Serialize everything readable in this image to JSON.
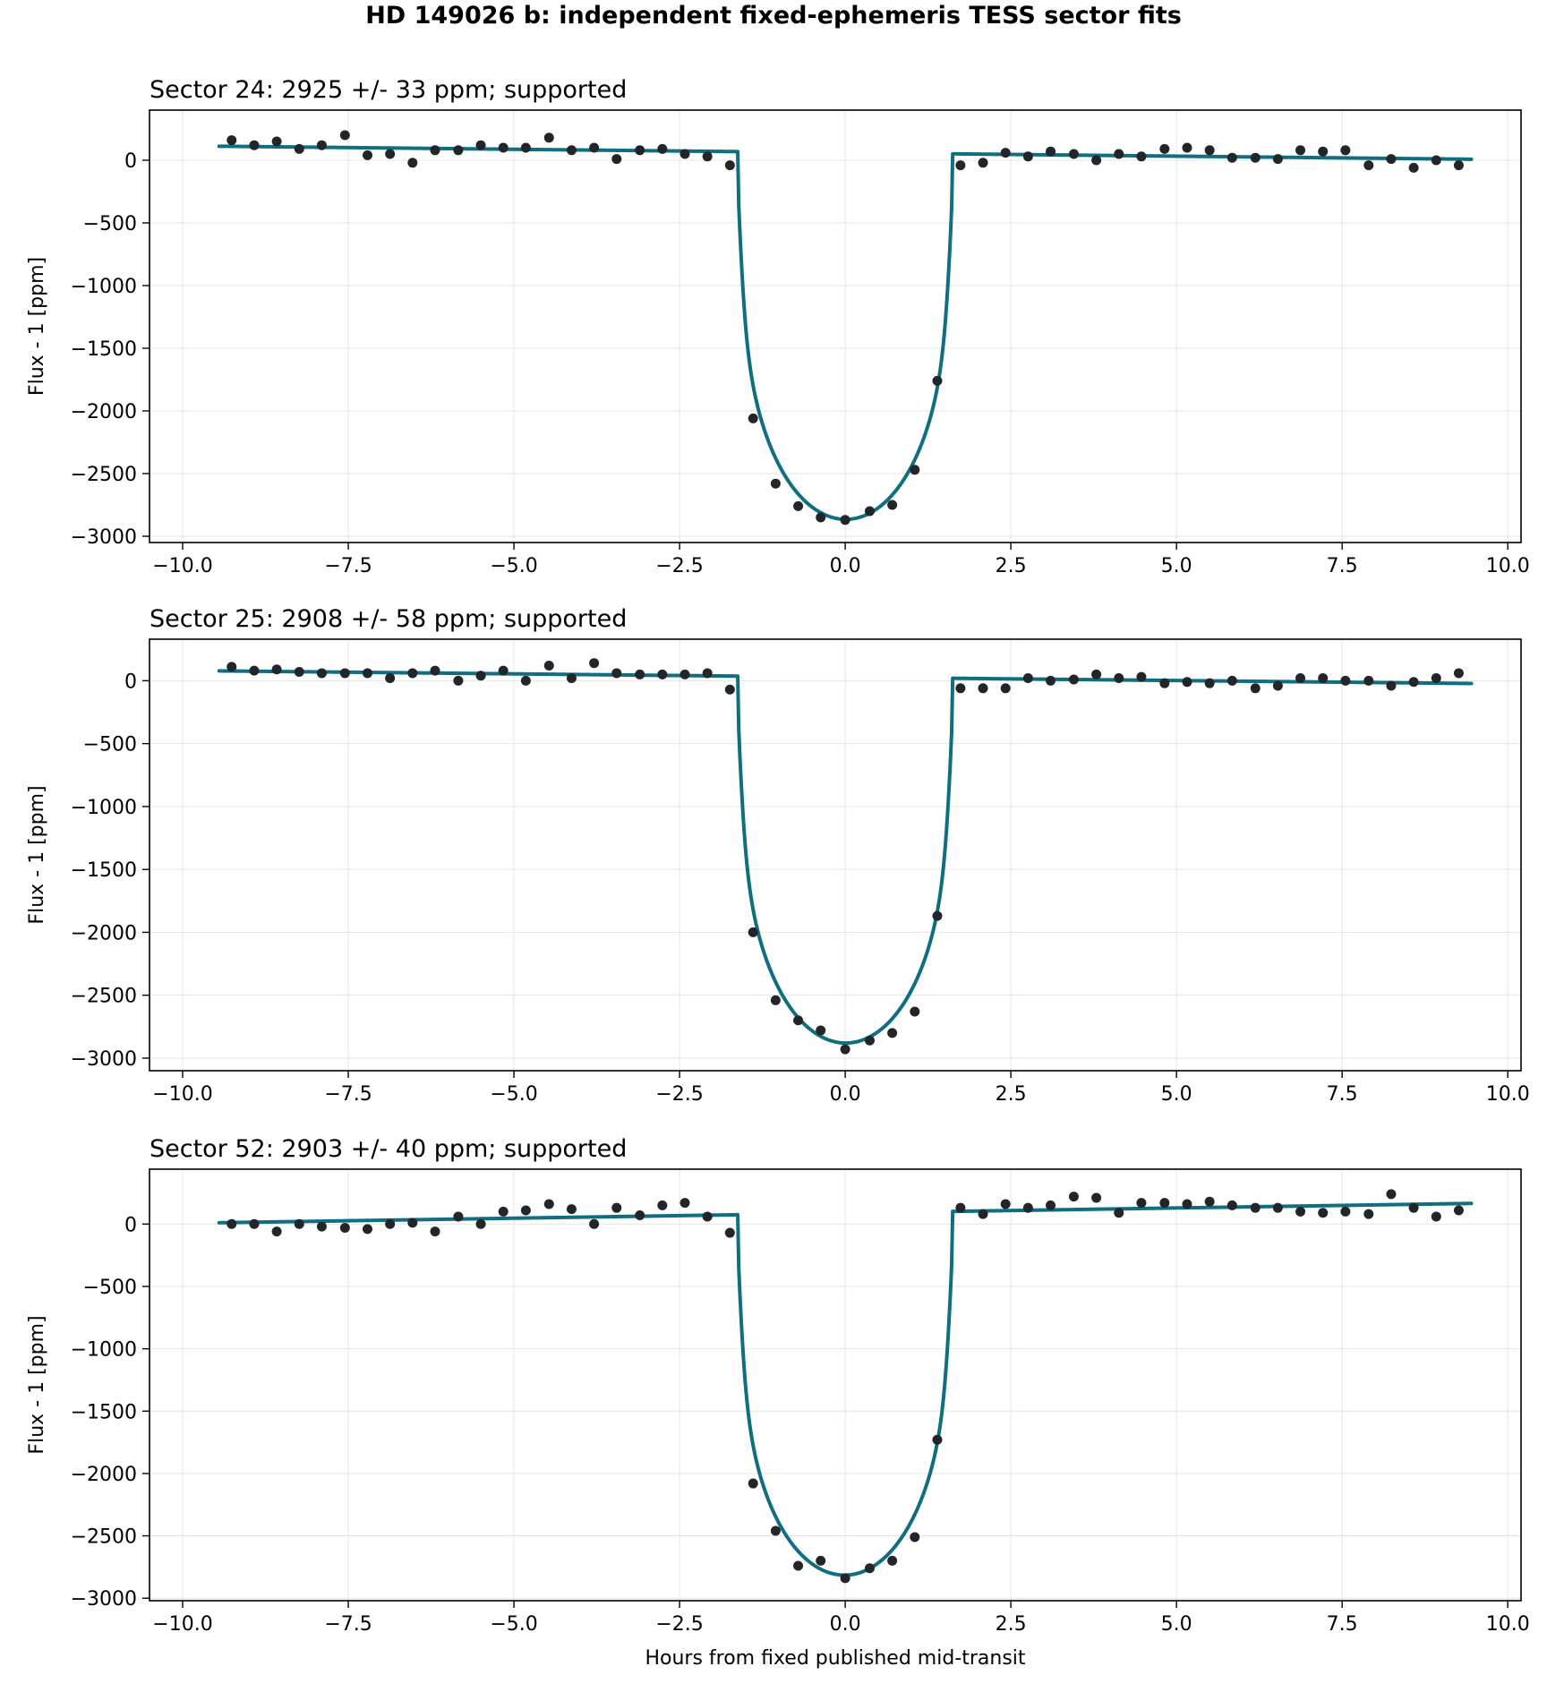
{
  "figure": {
    "suptitle": "HD 149026 b: independent fixed-ephemeris TESS sector fits",
    "xlabel": "Hours from fixed published mid-transit"
  },
  "colors": {
    "model_line": "#0f6e80",
    "data_points": "#22262b"
  },
  "chart_data": [
    {
      "type": "scatter",
      "title": "Sector 24: 2925 +/- 33 ppm; supported",
      "xlabel": "",
      "ylabel": "Flux - 1 [ppm]",
      "xlim": [
        -10.5,
        10.2
      ],
      "ylim": [
        -3050,
        400
      ],
      "xticks": [
        -10.0,
        -7.5,
        -5.0,
        -2.5,
        0.0,
        2.5,
        5.0,
        7.5,
        10.0
      ],
      "xtick_labels": [
        "−10.0",
        "−7.5",
        "−5.0",
        "−2.5",
        "0.0",
        "2.5",
        "5.0",
        "7.5",
        "10.0"
      ],
      "yticks": [
        0,
        -500,
        -1000,
        -1500,
        -2000,
        -2500,
        -3000
      ],
      "ytick_labels": [
        "0",
        "−500",
        "−1000",
        "−1500",
        "−2000",
        "−2500",
        "−3000"
      ],
      "grid": true,
      "legend": "none",
      "series": [
        {
          "kind": "points",
          "x": [
            -9.26,
            -8.92,
            -8.58,
            -8.24,
            -7.9,
            -7.55,
            -7.21,
            -6.87,
            -6.53,
            -6.19,
            -5.84,
            -5.5,
            -5.16,
            -4.82,
            -4.47,
            -4.13,
            -3.79,
            -3.45,
            -3.1,
            -2.76,
            -2.42,
            -2.08,
            -1.74,
            -1.39,
            -1.05,
            -0.71,
            -0.37,
            0.0,
            0.37,
            0.71,
            1.05,
            1.39,
            1.74,
            2.08,
            2.42,
            2.76,
            3.1,
            3.45,
            3.79,
            4.13,
            4.47,
            4.82,
            5.16,
            5.5,
            5.84,
            6.19,
            6.53,
            6.87,
            7.21,
            7.55,
            7.9,
            8.24,
            8.58,
            8.92,
            9.26
          ],
          "y": [
            160,
            120,
            150,
            90,
            120,
            200,
            40,
            50,
            -20,
            80,
            80,
            120,
            100,
            100,
            180,
            80,
            100,
            10,
            80,
            90,
            50,
            30,
            -40,
            -2060,
            -2580,
            -2760,
            -2850,
            -2870,
            -2800,
            -2750,
            -2470,
            -1760,
            -40,
            -20,
            60,
            30,
            70,
            50,
            0,
            50,
            30,
            90,
            100,
            80,
            20,
            20,
            10,
            80,
            70,
            80,
            -40,
            10,
            -60,
            0,
            -40
          ]
        },
        {
          "kind": "model",
          "name": "",
          "x_range": [
            -9.45,
            9.45
          ],
          "baseline_intercept": 60,
          "baseline_slope": -5.5,
          "depth": 2925,
          "half_duration": 1.62,
          "ingress_width": 0.05,
          "limb_power": 0.33
        }
      ]
    },
    {
      "type": "scatter",
      "title": "Sector 25: 2908 +/- 58 ppm; supported",
      "xlabel": "",
      "ylabel": "Flux - 1 [ppm]",
      "xlim": [
        -10.5,
        10.2
      ],
      "ylim": [
        -3100,
        330
      ],
      "xticks": [
        -10.0,
        -7.5,
        -5.0,
        -2.5,
        0.0,
        2.5,
        5.0,
        7.5,
        10.0
      ],
      "xtick_labels": [
        "−10.0",
        "−7.5",
        "−5.0",
        "−2.5",
        "0.0",
        "2.5",
        "5.0",
        "7.5",
        "10.0"
      ],
      "yticks": [
        0,
        -500,
        -1000,
        -1500,
        -2000,
        -2500,
        -3000
      ],
      "ytick_labels": [
        "0",
        "−500",
        "−1000",
        "−1500",
        "−2000",
        "−2500",
        "−3000"
      ],
      "grid": true,
      "legend": "none",
      "series": [
        {
          "kind": "points",
          "x": [
            -9.26,
            -8.92,
            -8.58,
            -8.24,
            -7.9,
            -7.55,
            -7.21,
            -6.87,
            -6.53,
            -6.19,
            -5.84,
            -5.5,
            -5.16,
            -4.82,
            -4.47,
            -4.13,
            -3.79,
            -3.45,
            -3.1,
            -2.76,
            -2.42,
            -2.08,
            -1.74,
            -1.39,
            -1.05,
            -0.71,
            -0.37,
            0.0,
            0.37,
            0.71,
            1.05,
            1.39,
            1.74,
            2.08,
            2.42,
            2.76,
            3.1,
            3.45,
            3.79,
            4.13,
            4.47,
            4.82,
            5.16,
            5.5,
            5.84,
            6.19,
            6.53,
            6.87,
            7.21,
            7.55,
            7.9,
            8.24,
            8.58,
            8.92,
            9.26
          ],
          "y": [
            110,
            80,
            90,
            70,
            60,
            60,
            60,
            20,
            60,
            80,
            0,
            40,
            80,
            0,
            120,
            20,
            140,
            60,
            50,
            50,
            50,
            60,
            -70,
            -2000,
            -2540,
            -2700,
            -2780,
            -2930,
            -2860,
            -2800,
            -2630,
            -1870,
            -60,
            -60,
            -60,
            20,
            0,
            10,
            50,
            20,
            30,
            -20,
            -10,
            -20,
            0,
            -60,
            -40,
            20,
            20,
            0,
            0,
            -40,
            -10,
            20,
            60
          ]
        },
        {
          "kind": "model",
          "name": "",
          "x_range": [
            -9.45,
            9.45
          ],
          "baseline_intercept": 28,
          "baseline_slope": -5.3,
          "depth": 2908,
          "half_duration": 1.62,
          "ingress_width": 0.05,
          "limb_power": 0.33
        }
      ]
    },
    {
      "type": "scatter",
      "title": "Sector 52: 2903 +/- 40 ppm; supported",
      "xlabel": "Hours from fixed published mid-transit",
      "ylabel": "Flux - 1 [ppm]",
      "xlim": [
        -10.5,
        10.2
      ],
      "ylim": [
        -3020,
        440
      ],
      "xticks": [
        -10.0,
        -7.5,
        -5.0,
        -2.5,
        0.0,
        2.5,
        5.0,
        7.5,
        10.0
      ],
      "xtick_labels": [
        "−10.0",
        "−7.5",
        "−5.0",
        "−2.5",
        "0.0",
        "2.5",
        "5.0",
        "7.5",
        "10.0"
      ],
      "yticks": [
        0,
        -500,
        -1000,
        -1500,
        -2000,
        -2500,
        -3000
      ],
      "ytick_labels": [
        "0",
        "−500",
        "−1000",
        "−1500",
        "−2000",
        "−2500",
        "−3000"
      ],
      "grid": true,
      "legend": "none",
      "series": [
        {
          "kind": "points",
          "x": [
            -9.26,
            -8.92,
            -8.58,
            -8.24,
            -7.9,
            -7.55,
            -7.21,
            -6.87,
            -6.53,
            -6.19,
            -5.84,
            -5.5,
            -5.16,
            -4.82,
            -4.47,
            -4.13,
            -3.79,
            -3.45,
            -3.1,
            -2.76,
            -2.42,
            -2.08,
            -1.74,
            -1.39,
            -1.05,
            -0.71,
            -0.37,
            0.0,
            0.37,
            0.71,
            1.05,
            1.39,
            1.74,
            2.08,
            2.42,
            2.76,
            3.1,
            3.45,
            3.79,
            4.13,
            4.47,
            4.82,
            5.16,
            5.5,
            5.84,
            6.19,
            6.53,
            6.87,
            7.21,
            7.55,
            7.9,
            8.24,
            8.58,
            8.92,
            9.26
          ],
          "y": [
            0,
            0,
            -60,
            0,
            -20,
            -30,
            -40,
            0,
            10,
            -60,
            60,
            0,
            100,
            110,
            160,
            120,
            0,
            130,
            70,
            150,
            170,
            60,
            -70,
            -2080,
            -2460,
            -2740,
            -2700,
            -2840,
            -2760,
            -2700,
            -2510,
            -1730,
            130,
            80,
            160,
            130,
            150,
            220,
            210,
            90,
            170,
            170,
            160,
            180,
            150,
            130,
            130,
            100,
            90,
            100,
            80,
            240,
            130,
            60,
            110
          ]
        },
        {
          "kind": "model",
          "name": "",
          "x_range": [
            -9.45,
            9.45
          ],
          "baseline_intercept": 88,
          "baseline_slope": 8.2,
          "depth": 2903,
          "half_duration": 1.62,
          "ingress_width": 0.05,
          "limb_power": 0.33
        }
      ]
    }
  ]
}
